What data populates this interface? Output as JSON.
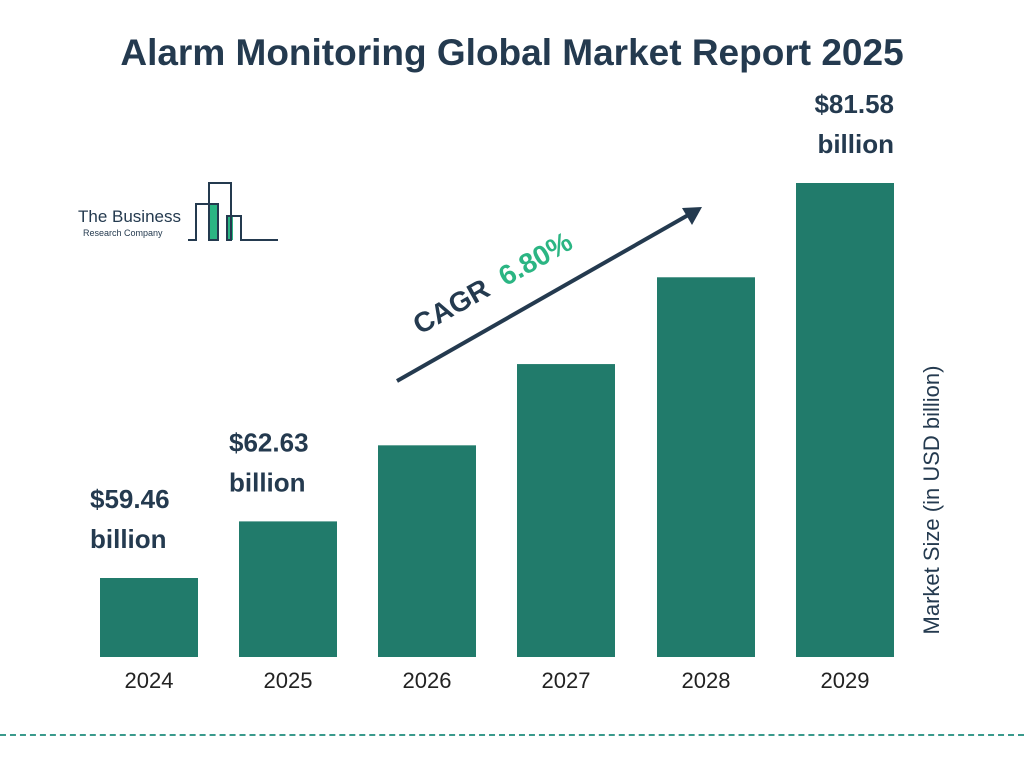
{
  "title": "Alarm Monitoring Global Market Report 2025",
  "logo": {
    "line1": "The Business",
    "line2": "Research Company"
  },
  "chart_data": {
    "type": "bar",
    "categories": [
      "2024",
      "2025",
      "2026",
      "2027",
      "2028",
      "2029"
    ],
    "values": [
      59.46,
      62.63,
      66.89,
      71.44,
      76.3,
      81.58
    ],
    "data_labels": [
      {
        "index": 0,
        "value": "$59.46",
        "unit": "billion"
      },
      {
        "index": 1,
        "value": "$62.63",
        "unit": "billion"
      },
      {
        "index": 5,
        "value": "$81.58",
        "unit": "billion"
      }
    ],
    "ylabel": "Market Size (in USD billion)",
    "xlabel": "",
    "grid": false,
    "annotation": {
      "label": "CAGR",
      "value": "6.80%"
    },
    "colors": {
      "bar": "#217b6b",
      "text": "#243a4f",
      "cagr": "#2bb583"
    }
  }
}
